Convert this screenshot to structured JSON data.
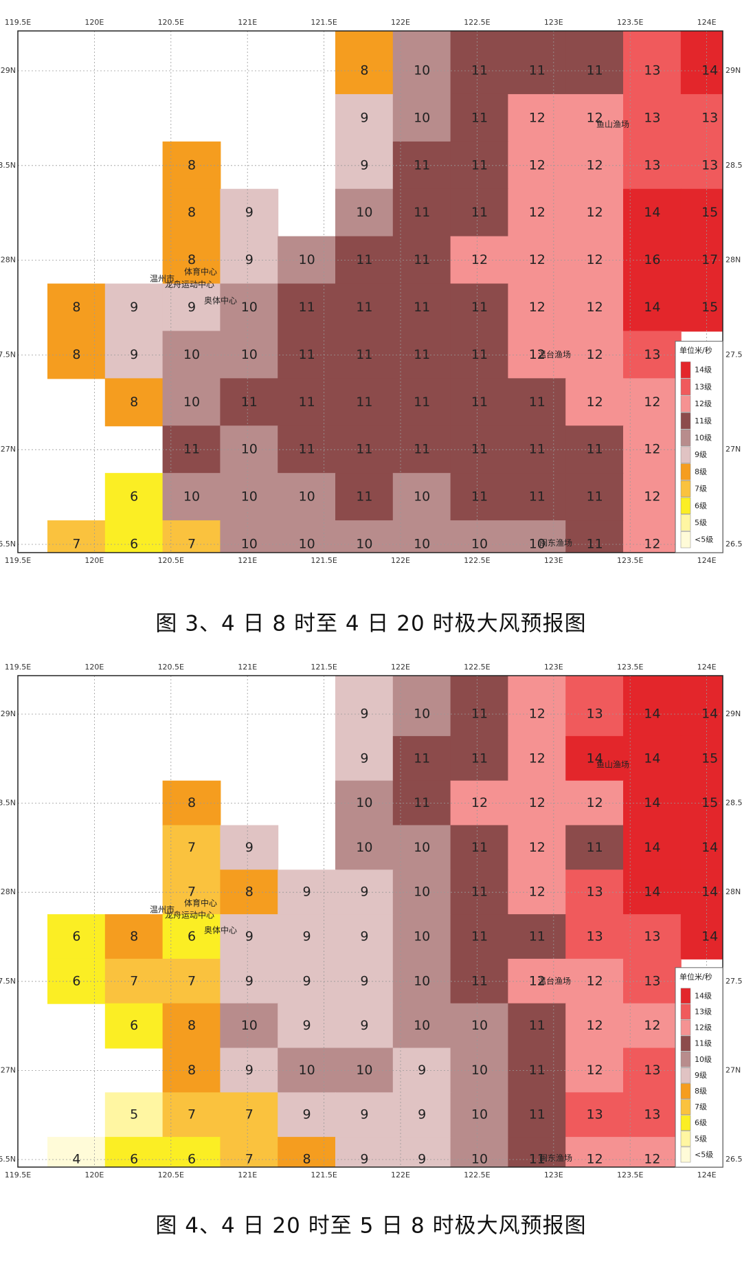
{
  "maps": [
    {
      "caption": "图 3、4 日 8 时至 4 日 20 时极大风预报图",
      "lon_labels": [
        "119.5E",
        "120E",
        "120.5E",
        "121E",
        "121.5E",
        "122E",
        "122.5E",
        "123E",
        "123.5E",
        "124E"
      ],
      "lat_labels": [
        "29N",
        "28.5N",
        "28N",
        "27.5N",
        "27N",
        "26.5N"
      ],
      "grid": [
        [
          null,
          null,
          null,
          null,
          null,
          8,
          10,
          11,
          11,
          11,
          13,
          14
        ],
        [
          null,
          null,
          null,
          null,
          null,
          9,
          10,
          11,
          12,
          12,
          13,
          13
        ],
        [
          null,
          null,
          8,
          null,
          null,
          9,
          11,
          11,
          12,
          12,
          13,
          13
        ],
        [
          null,
          null,
          8,
          9,
          null,
          10,
          11,
          11,
          12,
          12,
          14,
          15
        ],
        [
          null,
          null,
          8,
          9,
          10,
          11,
          11,
          12,
          12,
          12,
          16,
          17
        ],
        [
          8,
          9,
          9,
          10,
          11,
          11,
          11,
          11,
          12,
          12,
          14,
          15
        ],
        [
          8,
          9,
          10,
          10,
          11,
          11,
          11,
          11,
          12,
          12,
          13,
          null
        ],
        [
          null,
          8,
          10,
          11,
          11,
          11,
          11,
          11,
          11,
          12,
          12,
          null
        ],
        [
          null,
          null,
          11,
          10,
          11,
          11,
          11,
          11,
          11,
          11,
          12,
          null
        ],
        [
          null,
          6,
          10,
          10,
          10,
          11,
          10,
          11,
          11,
          11,
          12,
          null
        ],
        [
          7,
          6,
          7,
          10,
          10,
          10,
          10,
          10,
          10,
          11,
          12,
          null
        ]
      ],
      "places": [
        "鱼山渔场",
        "温州市",
        "体育中心",
        "龙舟运动中心",
        "奥体中心",
        "温台渔场",
        "闽东渔场"
      ],
      "legend": {
        "title": "单位米/秒",
        "items": [
          {
            "label": "14级",
            "color": "#e3262b"
          },
          {
            "label": "13级",
            "color": "#f05a5c"
          },
          {
            "label": "12级",
            "color": "#f59292"
          },
          {
            "label": "11级",
            "color": "#8c4b4b"
          },
          {
            "label": "10级",
            "color": "#b88c8c"
          },
          {
            "label": "9级",
            "color": "#e0c3c3"
          },
          {
            "label": "8级",
            "color": "#f59d1f"
          },
          {
            "label": "7级",
            "color": "#fac23e"
          },
          {
            "label": "6级",
            "color": "#fbee24"
          },
          {
            "label": "5级",
            "color": "#fff6a2"
          },
          {
            "label": "<5级",
            "color": "#fffbd8"
          }
        ]
      }
    },
    {
      "caption": "图 4、4 日 20 时至 5 日 8 时极大风预报图",
      "lon_labels": [
        "119.5E",
        "120E",
        "120.5E",
        "121E",
        "121.5E",
        "122E",
        "122.5E",
        "123E",
        "123.5E",
        "124E"
      ],
      "lat_labels": [
        "29N",
        "28.5N",
        "28N",
        "27.5N",
        "27N",
        "26.5N"
      ],
      "grid": [
        [
          null,
          null,
          null,
          null,
          null,
          9,
          10,
          11,
          12,
          13,
          14,
          14
        ],
        [
          null,
          null,
          null,
          null,
          null,
          9,
          11,
          11,
          12,
          14,
          14,
          15
        ],
        [
          null,
          null,
          8,
          null,
          null,
          10,
          11,
          12,
          12,
          12,
          14,
          15
        ],
        [
          null,
          null,
          7,
          9,
          null,
          10,
          10,
          11,
          12,
          11,
          14,
          14
        ],
        [
          null,
          null,
          7,
          8,
          9,
          9,
          10,
          11,
          12,
          13,
          14,
          14
        ],
        [
          6,
          8,
          6,
          9,
          9,
          9,
          10,
          11,
          11,
          13,
          13,
          14
        ],
        [
          6,
          7,
          7,
          9,
          9,
          9,
          10,
          11,
          12,
          12,
          13,
          null
        ],
        [
          null,
          6,
          8,
          10,
          9,
          9,
          10,
          10,
          11,
          12,
          12,
          null
        ],
        [
          null,
          null,
          8,
          9,
          10,
          10,
          9,
          10,
          11,
          12,
          13,
          null
        ],
        [
          null,
          5,
          7,
          7,
          9,
          9,
          9,
          10,
          11,
          13,
          13,
          null
        ],
        [
          4,
          6,
          6,
          7,
          8,
          9,
          9,
          10,
          11,
          12,
          12,
          null
        ]
      ],
      "places": [
        "鱼山渔场",
        "温州市",
        "体育中心",
        "龙舟运动中心",
        "奥体中心",
        "温台渔场",
        "闽东渔场"
      ],
      "legend": {
        "title": "单位米/秒",
        "items": [
          {
            "label": "14级",
            "color": "#e3262b"
          },
          {
            "label": "13级",
            "color": "#f05a5c"
          },
          {
            "label": "12级",
            "color": "#f59292"
          },
          {
            "label": "11级",
            "color": "#8c4b4b"
          },
          {
            "label": "10级",
            "color": "#b88c8c"
          },
          {
            "label": "9级",
            "color": "#e0c3c3"
          },
          {
            "label": "8级",
            "color": "#f59d1f"
          },
          {
            "label": "7级",
            "color": "#fac23e"
          },
          {
            "label": "6级",
            "color": "#fbee24"
          },
          {
            "label": "5级",
            "color": "#fff6a2"
          },
          {
            "label": "<5级",
            "color": "#fffbd8"
          }
        ]
      }
    }
  ]
}
